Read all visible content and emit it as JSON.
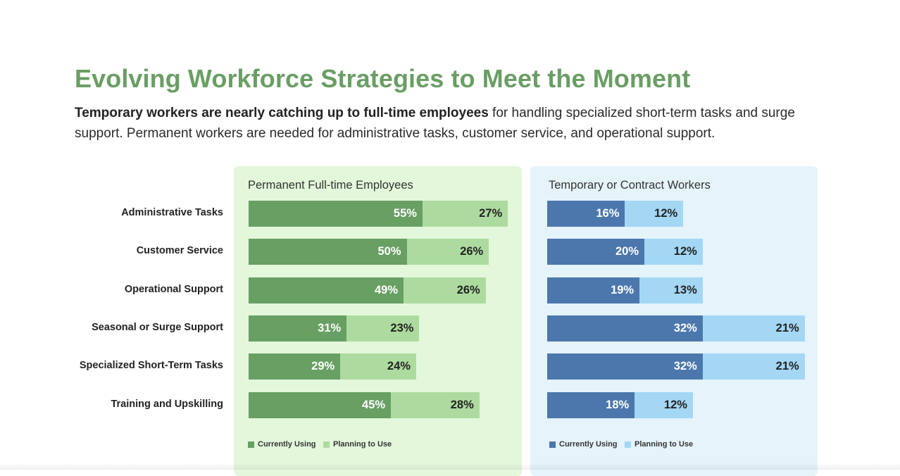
{
  "header": {
    "title": "Evolving Workforce Strategies to Meet the Moment",
    "subtitle_bold": "Temporary workers are nearly catching up to full-time employees",
    "subtitle_rest": " for handling specialized short-term tasks and surge support. Permanent workers are needed for administrative tasks, customer service, and operational support."
  },
  "colors": {
    "title": "#6a9e64",
    "perm_current": "#689f63",
    "perm_planning": "#addb9f",
    "perm_panel_bg": "#e3f7db",
    "temp_current": "#4b77ad",
    "temp_planning": "#a3d7f4",
    "temp_panel_bg": "#e5f3fb"
  },
  "chart_data": [
    {
      "type": "bar",
      "orientation": "horizontal",
      "stacked": true,
      "title": "Permanent Full-time Employees",
      "categories": [
        "Administrative Tasks",
        "Customer Service",
        "Operational Support",
        "Seasonal or Surge Support",
        "Specialized Short-Term Tasks",
        "Training and Upskilling"
      ],
      "series": [
        {
          "name": "Currently Using",
          "values": [
            55,
            50,
            49,
            31,
            29,
            45
          ],
          "labels": [
            "55%",
            "50%",
            "49%",
            "31%",
            "29%",
            "45%"
          ]
        },
        {
          "name": "Planning to Use",
          "values": [
            27,
            26,
            26,
            23,
            24,
            28
          ],
          "labels": [
            "27%",
            "26%",
            "26%",
            "23%",
            "24%",
            "28%"
          ]
        }
      ],
      "legend_position": "bottom-left",
      "grid": false
    },
    {
      "type": "bar",
      "orientation": "horizontal",
      "stacked": true,
      "title": "Temporary or Contract Workers",
      "categories": [
        "Administrative Tasks",
        "Customer Service",
        "Operational Support",
        "Seasonal or Surge Support",
        "Specialized Short-Term Tasks",
        "Training and Upskilling"
      ],
      "series": [
        {
          "name": "Currently Using",
          "values": [
            16,
            20,
            19,
            32,
            32,
            18
          ],
          "labels": [
            "16%",
            "20%",
            "19%",
            "32%",
            "32%",
            "18%"
          ]
        },
        {
          "name": "Planning to Use",
          "values": [
            12,
            12,
            13,
            21,
            21,
            12
          ],
          "labels": [
            "12%",
            "12%",
            "13%",
            "21%",
            "21%",
            "12%"
          ]
        }
      ],
      "legend_position": "bottom-left",
      "grid": false
    }
  ]
}
